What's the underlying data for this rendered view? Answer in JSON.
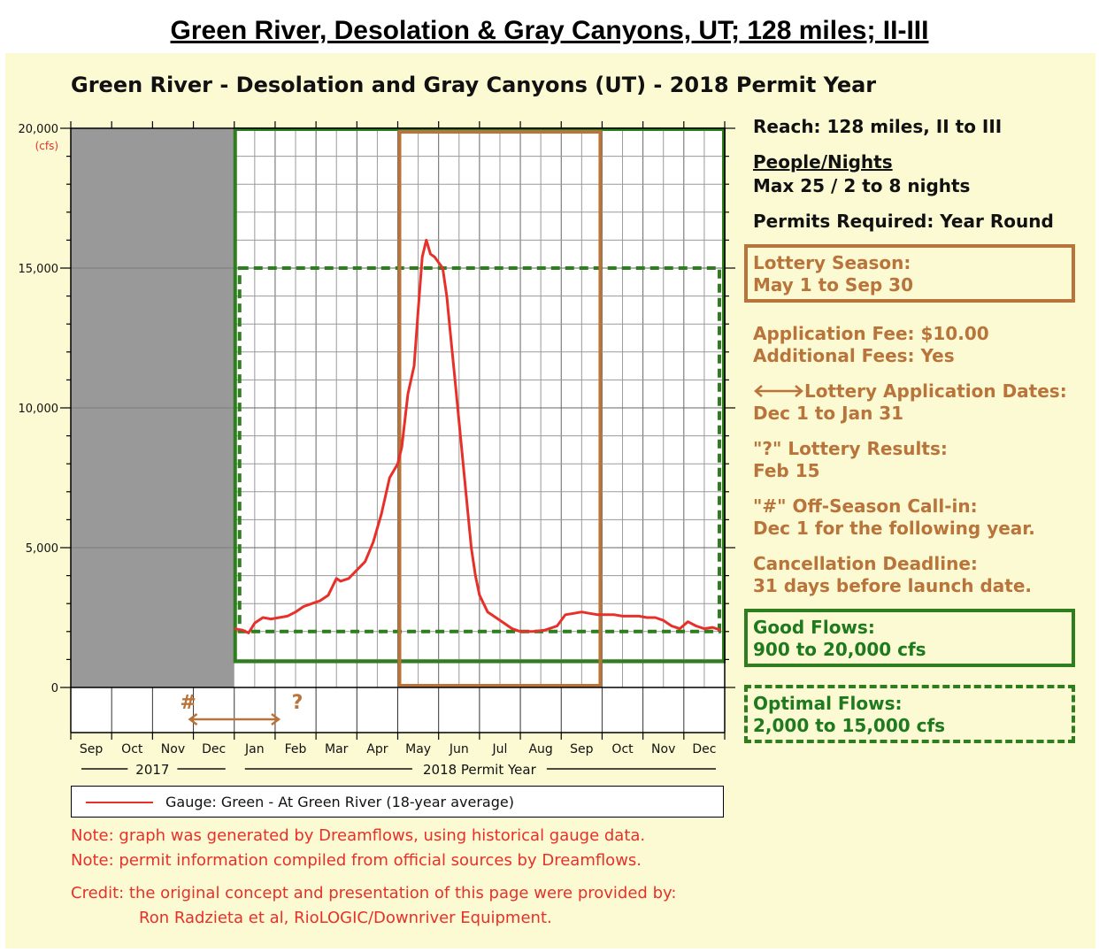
{
  "page": {
    "heading": "Green River, Desolation & Gray Canyons, UT; 128 miles; II-III"
  },
  "chart_data": {
    "type": "line",
    "title": "Green River - Desolation and Gray Canyons (UT) - 2018 Permit Year",
    "ylabel": "",
    "yunit": "(cfs)",
    "ylim": [
      0,
      20000
    ],
    "yticks": [
      {
        "value": 0,
        "label": "0"
      },
      {
        "value": 5000,
        "label": "5,000"
      },
      {
        "value": 10000,
        "label": "10,000"
      },
      {
        "value": 15000,
        "label": "15,000"
      },
      {
        "value": 20000,
        "label": "20,000"
      }
    ],
    "month_labels": [
      "Sep",
      "Oct",
      "Nov",
      "Dec",
      "Jan",
      "Feb",
      "Mar",
      "Apr",
      "May",
      "Jun",
      "Jul",
      "Aug",
      "Sep",
      "Oct",
      "Nov",
      "Dec"
    ],
    "year_labels": [
      "2017",
      "2018 Permit Year"
    ],
    "grid": true,
    "colors": {
      "flow_line": "#e8302a",
      "green": "#2e7d1e",
      "brown": "#b8743a",
      "off_period": "#999999"
    },
    "series": [
      {
        "name": "Gauge: Green - At Green River (18-year average)",
        "x": [
          4.0,
          4.2,
          4.35,
          4.5,
          4.7,
          4.9,
          5.1,
          5.3,
          5.5,
          5.7,
          5.9,
          6.1,
          6.3,
          6.5,
          6.6,
          6.8,
          7.0,
          7.2,
          7.4,
          7.6,
          7.8,
          8.0,
          8.1,
          8.25,
          8.4,
          8.5,
          8.6,
          8.7,
          8.8,
          8.9,
          9.0,
          9.1,
          9.2,
          9.3,
          9.4,
          9.5,
          9.6,
          9.7,
          9.8,
          9.9,
          10.0,
          10.2,
          10.4,
          10.6,
          10.8,
          11.0,
          11.3,
          11.6,
          11.9,
          12.1,
          12.3,
          12.5,
          12.7,
          12.9,
          13.1,
          13.3,
          13.5,
          13.7,
          13.9,
          14.1,
          14.3,
          14.5,
          14.7,
          14.9,
          15.1,
          15.3,
          15.5,
          15.7,
          15.9
        ],
        "y": [
          2100,
          2050,
          1950,
          2300,
          2500,
          2450,
          2500,
          2550,
          2700,
          2900,
          3000,
          3100,
          3300,
          3900,
          3800,
          3900,
          4200,
          4500,
          5200,
          6200,
          7500,
          8000,
          8600,
          10500,
          11500,
          13500,
          15400,
          16000,
          15500,
          15400,
          15200,
          15000,
          14000,
          12500,
          11000,
          9500,
          8000,
          6500,
          5000,
          4000,
          3300,
          2700,
          2500,
          2300,
          2100,
          2000,
          2000,
          2050,
          2200,
          2600,
          2650,
          2700,
          2650,
          2600,
          2600,
          2600,
          2550,
          2550,
          2550,
          2500,
          2500,
          2400,
          2200,
          2100,
          2350,
          2200,
          2100,
          2150,
          2050
        ]
      }
    ],
    "regions": {
      "off_period": {
        "x_start": 0,
        "x_end": 4
      },
      "good_flows": {
        "x_start": 4,
        "x_end": 16,
        "y_min": 900,
        "y_max": 20000
      },
      "optimal_flows": {
        "x_start": 4,
        "x_end": 16,
        "y_min": 2000,
        "y_max": 15000
      },
      "lottery_season": {
        "x_start": 8,
        "x_end": 13
      }
    },
    "markers": {
      "off_season_call_in": {
        "symbol": "#",
        "x": 3
      },
      "lottery_results": {
        "symbol": "?",
        "x": 5.5
      },
      "application_dates": {
        "x_start": 3,
        "x_end": 5
      }
    }
  },
  "info": {
    "reach": "Reach: 128 miles, II to III",
    "people_nights_title": "People/Nights",
    "people_nights_value": "Max 25 / 2 to 8 nights",
    "permits_required": "Permits Required: Year Round",
    "lottery_season_title": "Lottery Season:",
    "lottery_season_value": "May 1 to Sep 30",
    "application_fee": "Application Fee: $10.00",
    "additional_fees": "Additional Fees: Yes",
    "application_dates_title": "Lottery Application Dates:",
    "application_dates_value": "Dec 1 to Jan 31",
    "lottery_results_title": "\"?\" Lottery Results:",
    "lottery_results_value": "Feb 15",
    "call_in_title": "\"#\" Off-Season Call-in:",
    "call_in_value": "Dec 1 for the following year.",
    "cancellation_title": "Cancellation Deadline:",
    "cancellation_value": "31 days before launch date.",
    "good_flows_title": "Good Flows:",
    "good_flows_value": "900 to 20,000 cfs",
    "optimal_flows_title": "Optimal Flows:",
    "optimal_flows_value": "2,000 to 15,000 cfs"
  },
  "legend": {
    "label": "Gauge: Green - At Green River (18-year average)"
  },
  "notes": {
    "note1": "Note: graph was generated by Dreamflows, using historical gauge data.",
    "note2": "Note: permit information compiled from official sources by Dreamflows.",
    "credit1": "Credit: the original concept and presentation of this page were provided by:",
    "credit2": "Ron Radzieta et al, RioLOGIC/Downriver Equipment."
  }
}
